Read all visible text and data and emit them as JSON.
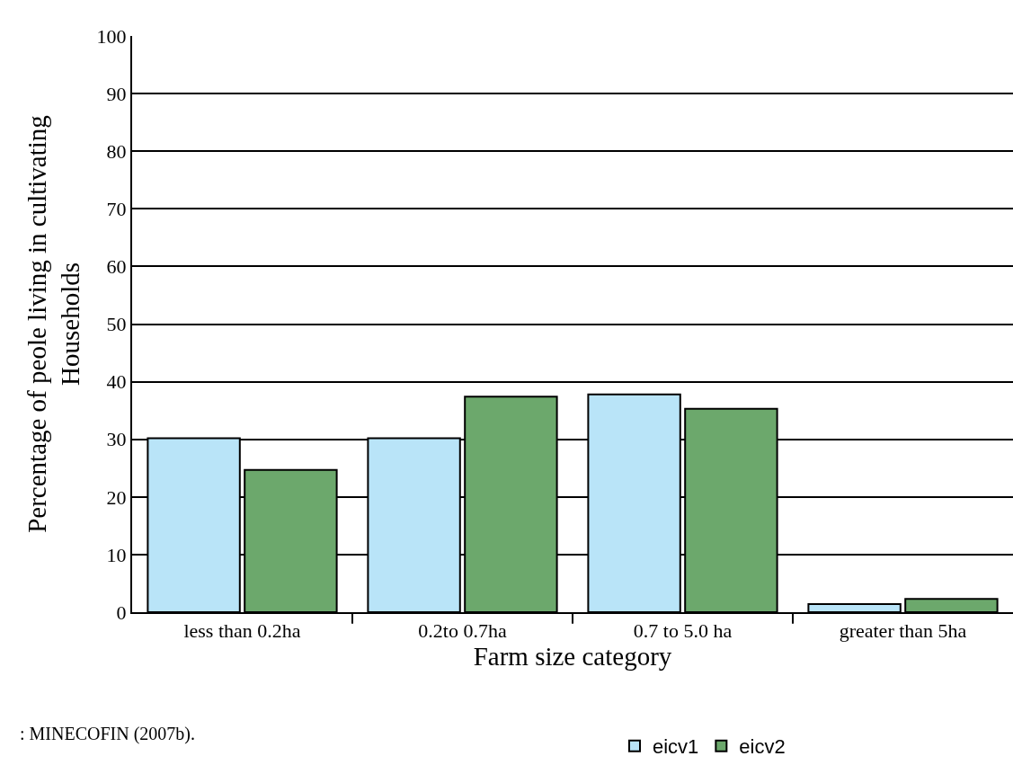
{
  "chart_data": {
    "type": "bar",
    "categories": [
      "less than 0.2ha",
      "0.2to 0.7ha",
      "0.7 to 5.0 ha",
      "greater than 5ha"
    ],
    "series": [
      {
        "name": "eicv1",
        "color": "#b9e4f8",
        "values": [
          30.2,
          30.2,
          37.8,
          1.4
        ]
      },
      {
        "name": "eicv2",
        "color": "#6ca86c",
        "values": [
          24.7,
          37.4,
          35.3,
          2.3
        ]
      }
    ],
    "xlabel": "Farm size category",
    "ylabel": "Percentage of peole living in cultivating\nHouseholds",
    "ylim": [
      0,
      100
    ],
    "yticks": [
      0,
      10,
      20,
      30,
      40,
      50,
      60,
      70,
      80,
      90,
      100
    ],
    "grid": "y",
    "legend": "bottom",
    "annotations": [
      ": MINECOFIN (2007b)."
    ]
  }
}
